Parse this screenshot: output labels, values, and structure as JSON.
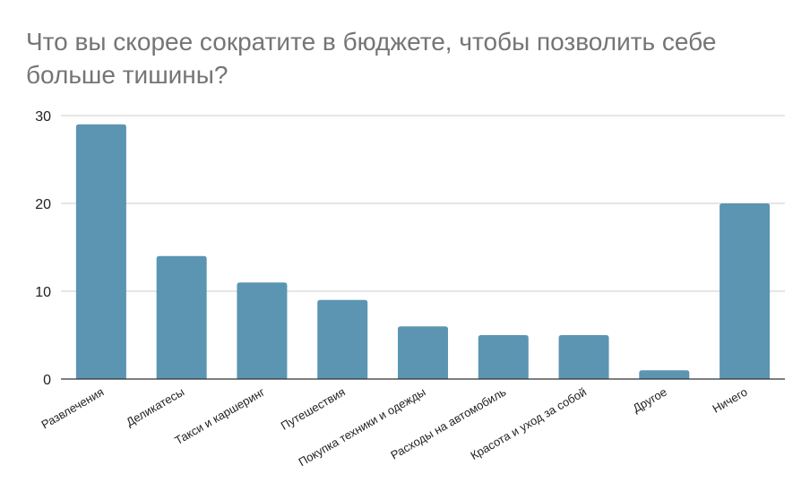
{
  "chart_data": {
    "type": "bar",
    "title": "Что вы скорее сократите в бюджете, чтобы позволить себе больше тишины?",
    "categories": [
      "Развлечения",
      "Деликатесы",
      "Такси и каршеринг",
      "Путешествия",
      "Покупка техники и одежды",
      "Расходы на автомобиль",
      "Красота и уход за собой",
      "Другое",
      "Ничего"
    ],
    "values": [
      29,
      14,
      11,
      9,
      6,
      5,
      5,
      1,
      20
    ],
    "ylim": [
      0,
      30
    ],
    "yticks": [
      0,
      10,
      20,
      30
    ],
    "grid": true,
    "bar_color": "#5b95b2",
    "grid_color": "#cccccc",
    "axis_color": "#333333"
  }
}
